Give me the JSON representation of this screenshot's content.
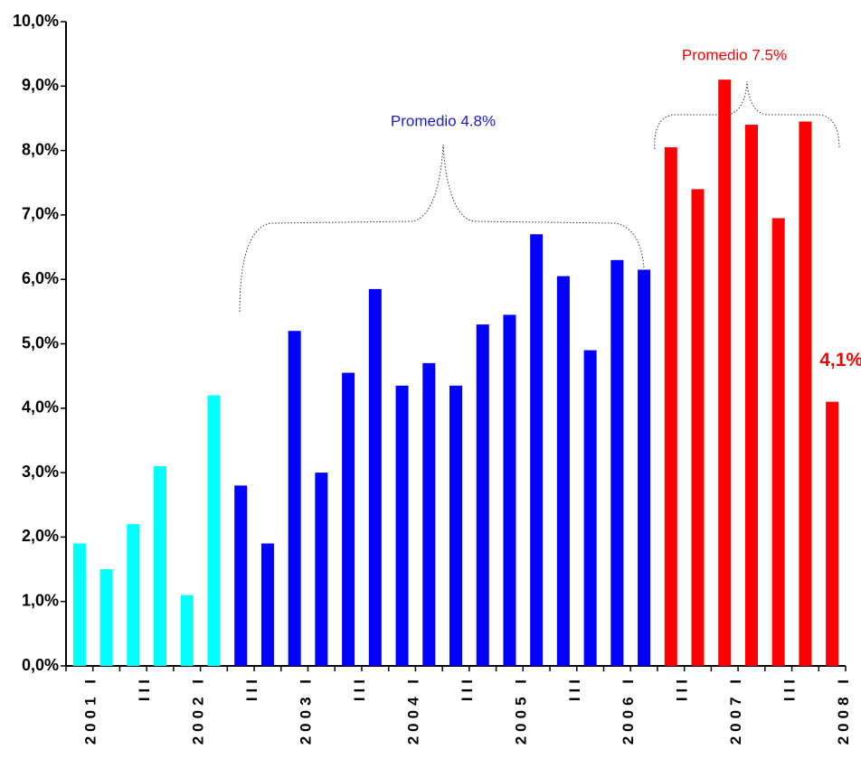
{
  "chart_data": {
    "type": "bar",
    "categories": [
      "2001 I",
      null,
      "III",
      null,
      "2002 I",
      null,
      "III",
      null,
      "2003 I",
      null,
      "III",
      null,
      "2004 I",
      null,
      "III",
      null,
      "2005 I",
      null,
      "III",
      null,
      "2006 I",
      null,
      "III",
      null,
      "2007 I",
      null,
      "III",
      null,
      "2008 I"
    ],
    "values": [
      1.9,
      1.5,
      2.2,
      3.1,
      1.1,
      4.2,
      2.8,
      1.9,
      5.2,
      3.0,
      4.55,
      5.85,
      4.35,
      4.7,
      4.35,
      5.3,
      5.45,
      6.7,
      6.05,
      4.9,
      6.3,
      6.15,
      8.05,
      7.4,
      9.1,
      8.4,
      6.95,
      8.45,
      4.1
    ],
    "colors": [
      "#00ffff",
      "#00ffff",
      "#00ffff",
      "#00ffff",
      "#00ffff",
      "#00ffff",
      "#0000ff",
      "#0000ff",
      "#0000ff",
      "#0000ff",
      "#0000ff",
      "#0000ff",
      "#0000ff",
      "#0000ff",
      "#0000ff",
      "#0000ff",
      "#0000ff",
      "#0000ff",
      "#0000ff",
      "#0000ff",
      "#0000ff",
      "#0000ff",
      "#ff0000",
      "#ff0000",
      "#ff0000",
      "#ff0000",
      "#ff0000",
      "#ff0000",
      "#ff0000"
    ],
    "value_labels": [
      null,
      null,
      null,
      null,
      null,
      null,
      null,
      null,
      null,
      null,
      null,
      null,
      null,
      null,
      null,
      null,
      null,
      null,
      null,
      null,
      null,
      null,
      null,
      null,
      null,
      null,
      null,
      null,
      "4,1%"
    ],
    "ylim": [
      0,
      10
    ],
    "yticks": [
      {
        "value": 0,
        "label": "0,0%"
      },
      {
        "value": 1,
        "label": "1,0%"
      },
      {
        "value": 2,
        "label": "2,0%"
      },
      {
        "value": 3,
        "label": "3,0%"
      },
      {
        "value": 4,
        "label": "4,0%"
      },
      {
        "value": 5,
        "label": "5,0%"
      },
      {
        "value": 6,
        "label": "6,0%"
      },
      {
        "value": 7,
        "label": "7,0%"
      },
      {
        "value": 8,
        "label": "8,0%"
      },
      {
        "value": 9,
        "label": "9,0%"
      },
      {
        "value": 10,
        "label": "10,0%"
      }
    ],
    "annotations": [
      {
        "text": "Promedio 4.8%",
        "color": "#1a1acc"
      },
      {
        "text": "Promedio 7.5%",
        "color": "#ff0000"
      }
    ],
    "grid": false
  }
}
